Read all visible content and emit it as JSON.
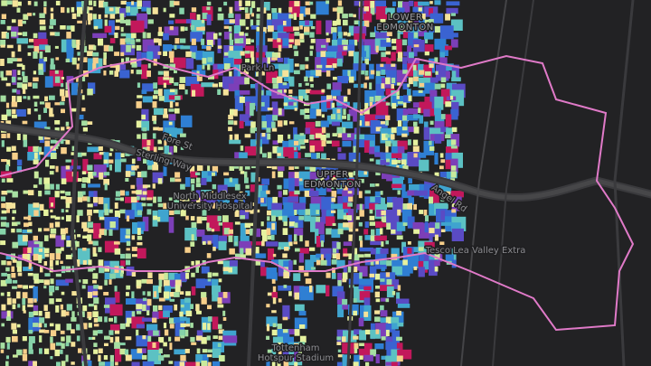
{
  "map": {
    "labels": [
      {
        "lines": [
          "LOWER",
          "EDMONTON"
        ],
        "kind": "place"
      },
      {
        "lines": [
          "Park Ln"
        ],
        "kind": "road"
      },
      {
        "lines": [
          "Sterling Way"
        ],
        "kind": "road"
      },
      {
        "lines": [
          "North Middlesex",
          "University Hospital"
        ],
        "kind": "poi"
      },
      {
        "lines": [
          "UPPER",
          "EDMONTON"
        ],
        "kind": "place"
      },
      {
        "lines": [
          "Angel Rd"
        ],
        "kind": "road"
      },
      {
        "lines": [
          "Tesco Lea Valley Extra"
        ],
        "kind": "poi"
      },
      {
        "lines": [
          "Tottenham",
          "Hotspur Stadium"
        ],
        "kind": "poi"
      },
      {
        "lines": [
          "Fore St"
        ],
        "kind": "road"
      }
    ]
  }
}
